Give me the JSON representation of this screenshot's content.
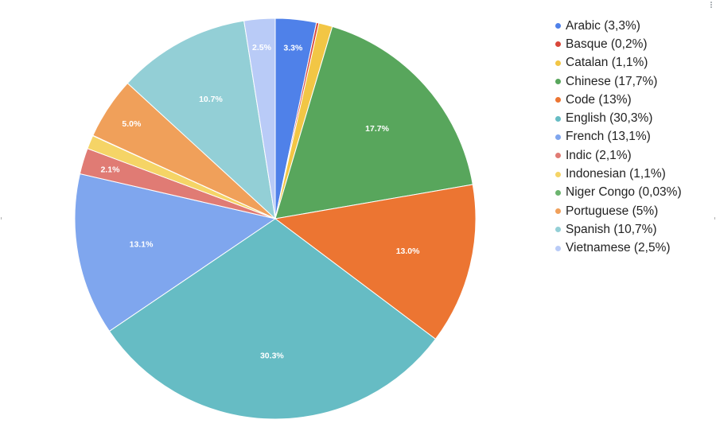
{
  "chart_data": {
    "type": "pie",
    "title": "",
    "categories": [
      "Arabic",
      "Basque",
      "Catalan",
      "Chinese",
      "Code",
      "English",
      "French",
      "Indic",
      "Indonesian",
      "Niger Congo",
      "Portuguese",
      "Spanish",
      "Vietnamese"
    ],
    "values": [
      3.3,
      0.2,
      1.1,
      17.7,
      13.0,
      30.3,
      13.1,
      2.1,
      1.1,
      0.03,
      5.0,
      10.7,
      2.5
    ],
    "colors": [
      "#4f81e9",
      "#d9473a",
      "#f2c645",
      "#58a65c",
      "#ec7532",
      "#66bcc4",
      "#7fa6ee",
      "#e07b74",
      "#f5d466",
      "#6cb46f",
      "#f0a05a",
      "#93cfd6",
      "#b9cbf7"
    ],
    "slice_labels": [
      "3.3%",
      "",
      "",
      "17.7%",
      "13.0%",
      "30.3%",
      "13.1%",
      "2.1%",
      "",
      "",
      "5.0%",
      "10.7%",
      "2.5%"
    ],
    "legend_position": "right",
    "legend": [
      "Arabic (3,3%)",
      "Basque (0,2%)",
      "Catalan (1,1%)",
      "Chinese (17,7%)",
      "Code (13%)",
      "English (30,3%)",
      "French (13,1%)",
      "Indic (2,1%)",
      "Indonesian (1,1%)",
      "Niger Congo (0,03%)",
      "Portuguese (5%)",
      "Spanish (10,7%)",
      "Vietnamese (2,5%)"
    ]
  },
  "menu_icon": "more-vert-icon"
}
